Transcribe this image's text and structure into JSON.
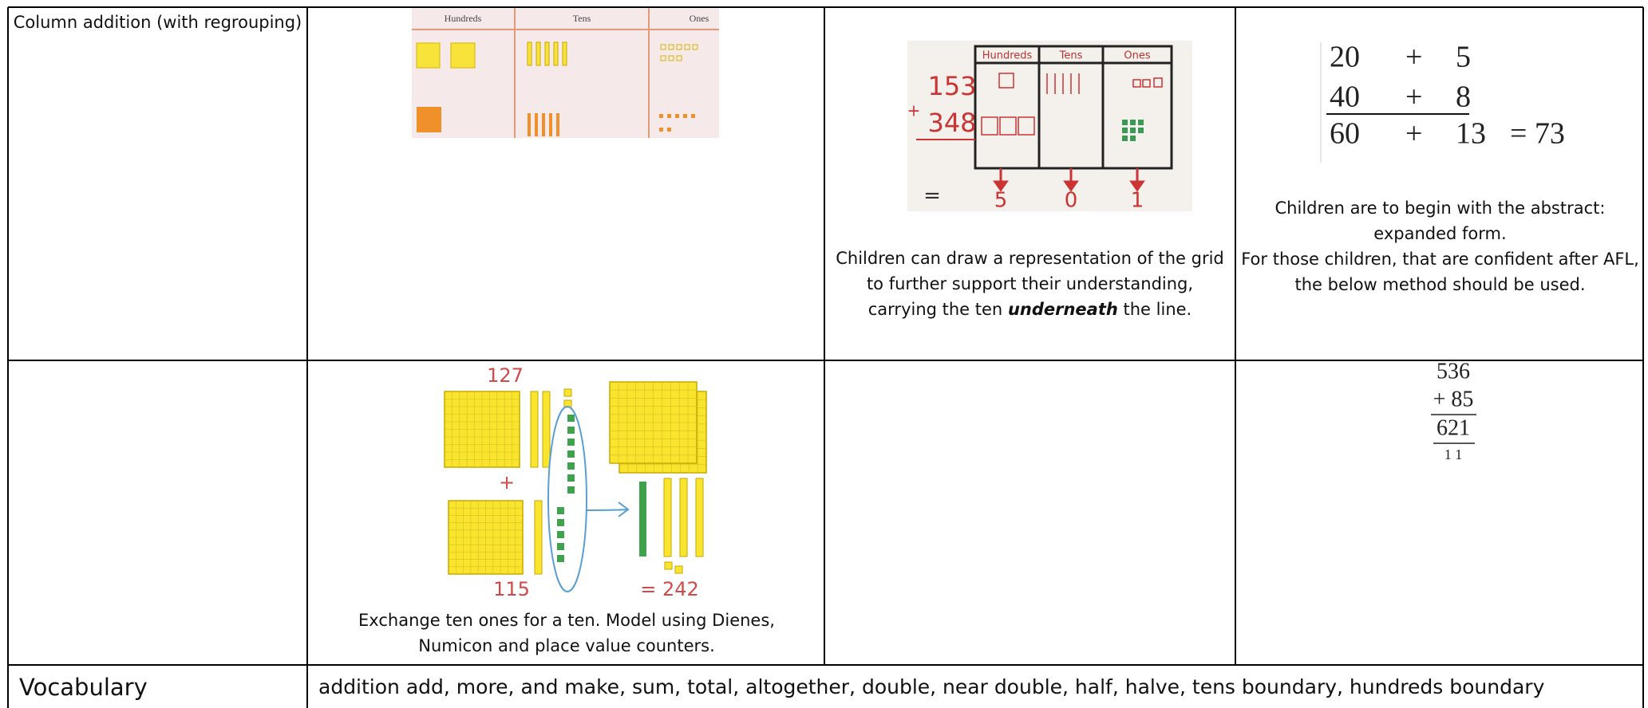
{
  "table": {
    "rows": [
      {
        "topic": "Column addition (with regrouping)",
        "concrete": {
          "headers": [
            "Hundreds",
            "Tens",
            "Ones"
          ]
        },
        "pictorial": {
          "headers": [
            "Hundreds",
            "Tens",
            "Ones"
          ],
          "addends": [
            "153",
            "348"
          ],
          "operator": "+",
          "equals": "=",
          "digits": [
            "5",
            "0",
            "1"
          ],
          "caption": {
            "before": "Children can draw a representation of the grid to further support their understanding, carrying the ten",
            "emphasis": "underneath",
            "after": "the line."
          }
        },
        "abstract": {
          "expanded": [
            [
              "20",
              "+",
              "5"
            ],
            [
              "40",
              "+",
              "8"
            ],
            [
              "60",
              "+",
              "13",
              "= 73"
            ]
          ],
          "caption": [
            "Children are to begin with the abstract: expanded form.",
            "For those children, that are confident after AFL, the below method should be used."
          ]
        }
      },
      {
        "concrete": {
          "top": "127",
          "operator": "+",
          "bottom": "115",
          "result": "= 242",
          "caption": "Exchange ten ones for a ten. Model using Dienes, Numicon and place value counters."
        },
        "abstract": {
          "column": [
            "536",
            "+ 85",
            "621",
            "1 1"
          ]
        }
      },
      {
        "topic": "Vocabulary",
        "text": "addition add, more, and make, sum, total, altogether, double, near double, half, halve, tens boundary, hundreds boundary"
      }
    ]
  }
}
